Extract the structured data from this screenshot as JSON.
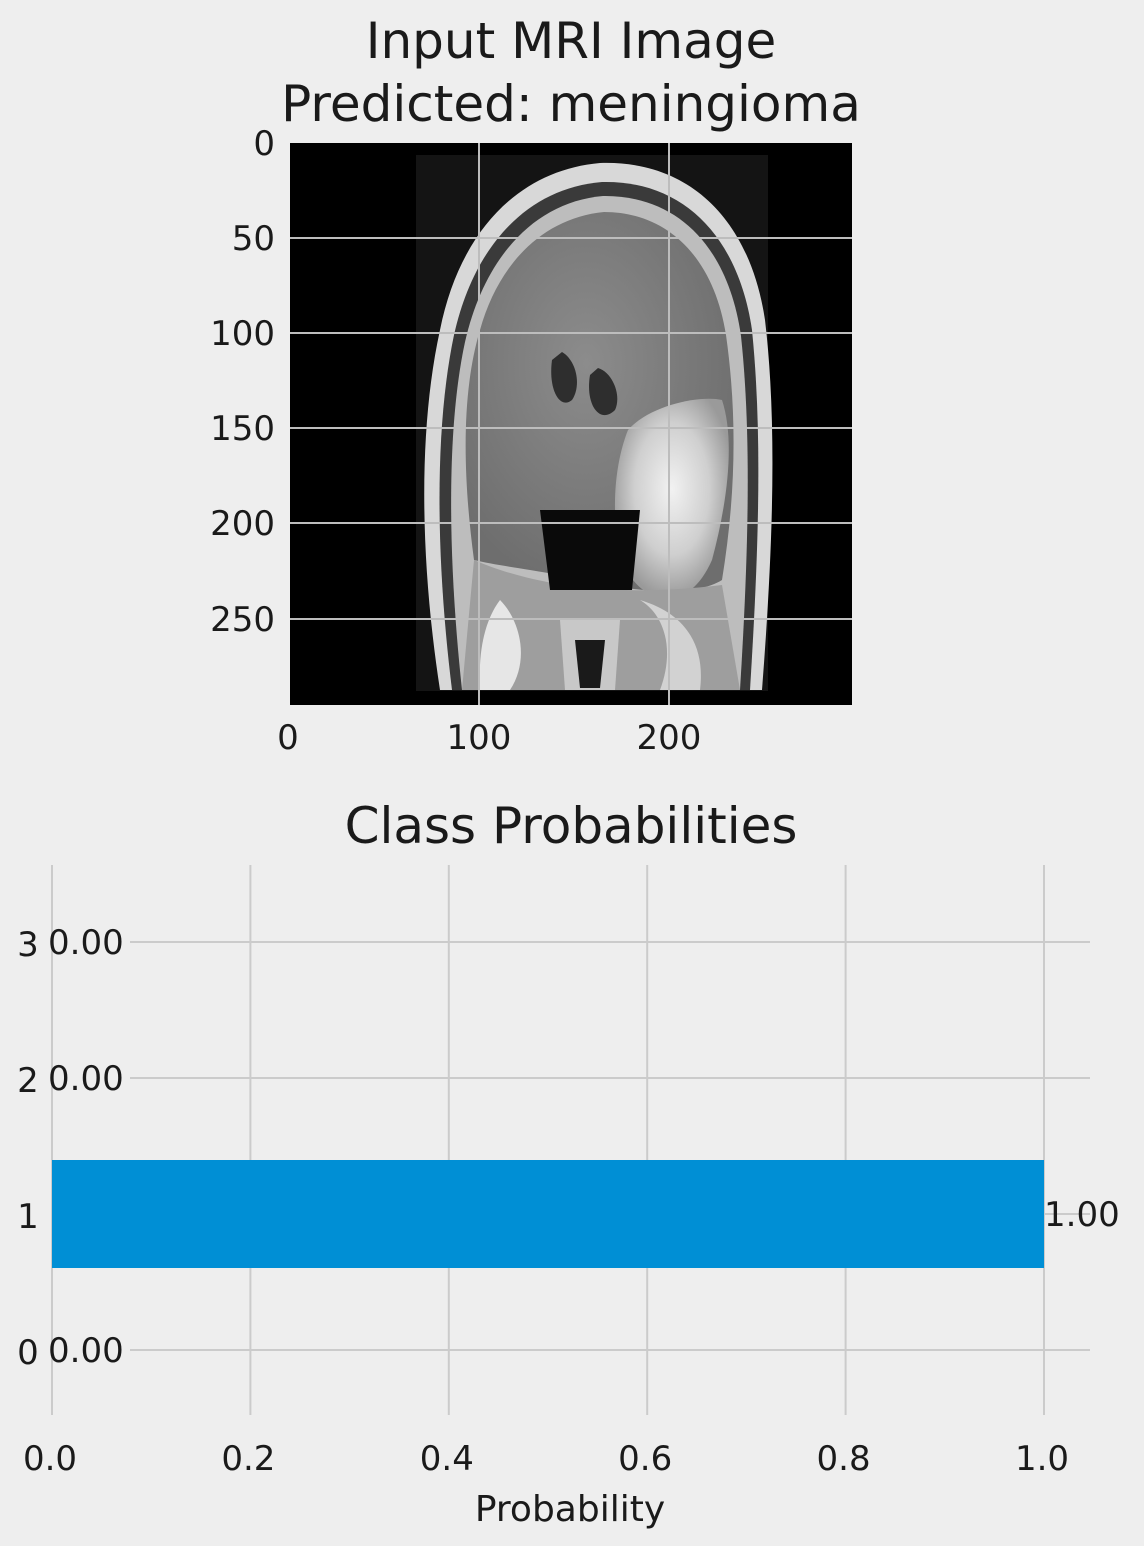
{
  "chart_data": [
    {
      "type": "image",
      "title": "Input MRI Image\nPredicted: meningioma",
      "title_lines": [
        "Input MRI Image",
        "Predicted: meningioma"
      ],
      "x_ticks": [
        "0",
        "100",
        "200"
      ],
      "y_ticks": [
        "0",
        "50",
        "100",
        "150",
        "200",
        "250"
      ],
      "image_extent": {
        "width": 295,
        "height": 295
      },
      "image_content": "grayscale coronal brain MRI slice with a bright tumor mass on the right side",
      "grid": true
    },
    {
      "type": "bar",
      "orientation": "horizontal",
      "title": "Class Probabilities",
      "xlabel": "Probability",
      "ylabel": "",
      "categories": [
        "0",
        "1",
        "2",
        "3"
      ],
      "values": [
        0.0,
        1.0,
        0.0,
        0.0
      ],
      "value_labels": [
        "0.00",
        "1.00",
        "0.00",
        "0.00"
      ],
      "xlim": [
        0.0,
        1.05
      ],
      "x_ticks": [
        "0.0",
        "0.2",
        "0.4",
        "0.6",
        "0.8",
        "1.0"
      ],
      "bar_color": "#008fd5",
      "grid": true
    }
  ]
}
